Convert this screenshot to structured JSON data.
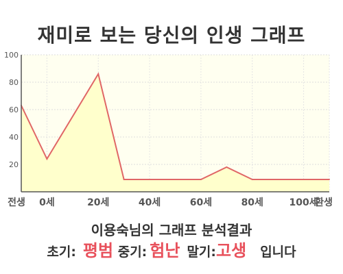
{
  "title": "재미로 보는 당신의 인생 그래프",
  "chart_data": {
    "type": "area",
    "title": "재미로 보는 당신의 인생 그래프",
    "xlabel": "",
    "ylabel": "",
    "ylim": [
      0,
      100
    ],
    "grid": true,
    "x": [
      -10,
      0,
      20,
      30,
      60,
      70,
      80,
      100,
      110
    ],
    "y": [
      63,
      24,
      86,
      9,
      9,
      18,
      9,
      9,
      9
    ],
    "x_ticks": [
      -10,
      0,
      20,
      40,
      60,
      80,
      100,
      110
    ],
    "x_tick_labels": [
      "전생",
      "0세",
      "20세",
      "40세",
      "60세",
      "80세",
      "100세",
      "환생"
    ],
    "y_ticks": [
      20,
      40,
      60,
      80,
      100
    ],
    "y_tick_labels": [
      "20",
      "40",
      "60",
      "80",
      "100"
    ],
    "colors": {
      "line": "#e06666",
      "fill": "#ffffcc",
      "plot_bg": "#fffff0"
    }
  },
  "summary": "이용숙님의 그래프 분석결과",
  "result": {
    "early_label": "초기:",
    "early_value": "평범",
    "mid_label": "중기:",
    "mid_value": "험난",
    "late_label": "말기:",
    "late_value": "고생",
    "ending": "입니다"
  },
  "accent_color": "#e8505b"
}
